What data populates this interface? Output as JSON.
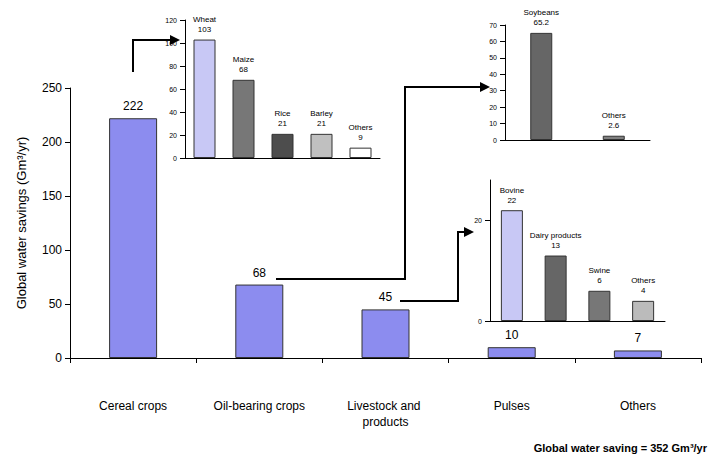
{
  "chart_data": [
    {
      "type": "bar",
      "categories": [
        "Cereal crops",
        "Oil-bearing crops",
        "Livestock and products",
        "Pulses",
        "Others"
      ],
      "values": [
        222,
        68,
        45,
        10,
        7
      ],
      "color": "#8c8cef",
      "ylabel": "Global water savings (Gm³/yr)",
      "ylim": [
        0,
        250
      ],
      "yticks": [
        0,
        50,
        100,
        150,
        200,
        250
      ],
      "data_labels": true,
      "grid": false,
      "annotation": "Global water saving = 352 Gm³/yr"
    },
    {
      "type": "bar",
      "categories": [
        "Wheat",
        "Maize",
        "Rice",
        "Barley",
        "Others"
      ],
      "values": [
        103,
        68,
        21,
        21,
        9
      ],
      "colors": [
        "#c8c8f5",
        "#777777",
        "#4d4d4d",
        "#c0c0c0",
        "#ffffff"
      ],
      "ylim": [
        0,
        120
      ],
      "yticks": [
        0,
        20,
        40,
        60,
        80,
        100,
        120
      ],
      "data_labels": true,
      "tick_labels": "y",
      "grid": false
    },
    {
      "type": "bar",
      "categories": [
        "Soybeans",
        "Others"
      ],
      "values": [
        65.2,
        2.6
      ],
      "colors": [
        "#666666",
        "#808080"
      ],
      "ylim": [
        0,
        70
      ],
      "yticks": [
        0,
        10,
        20,
        30,
        40,
        50,
        60,
        70
      ],
      "data_labels": true,
      "tick_labels": "y",
      "grid": false
    },
    {
      "type": "bar",
      "categories": [
        "Bovine",
        "Dairy products",
        "Swine",
        "Others"
      ],
      "values": [
        22,
        13,
        6,
        4
      ],
      "colors": [
        "#c8c8f5",
        "#666666",
        "#777777",
        "#bbbbbb"
      ],
      "ylim": [
        0,
        28
      ],
      "yticks": [
        0,
        20
      ],
      "data_labels": true,
      "tick_labels": "y",
      "grid": false
    }
  ]
}
